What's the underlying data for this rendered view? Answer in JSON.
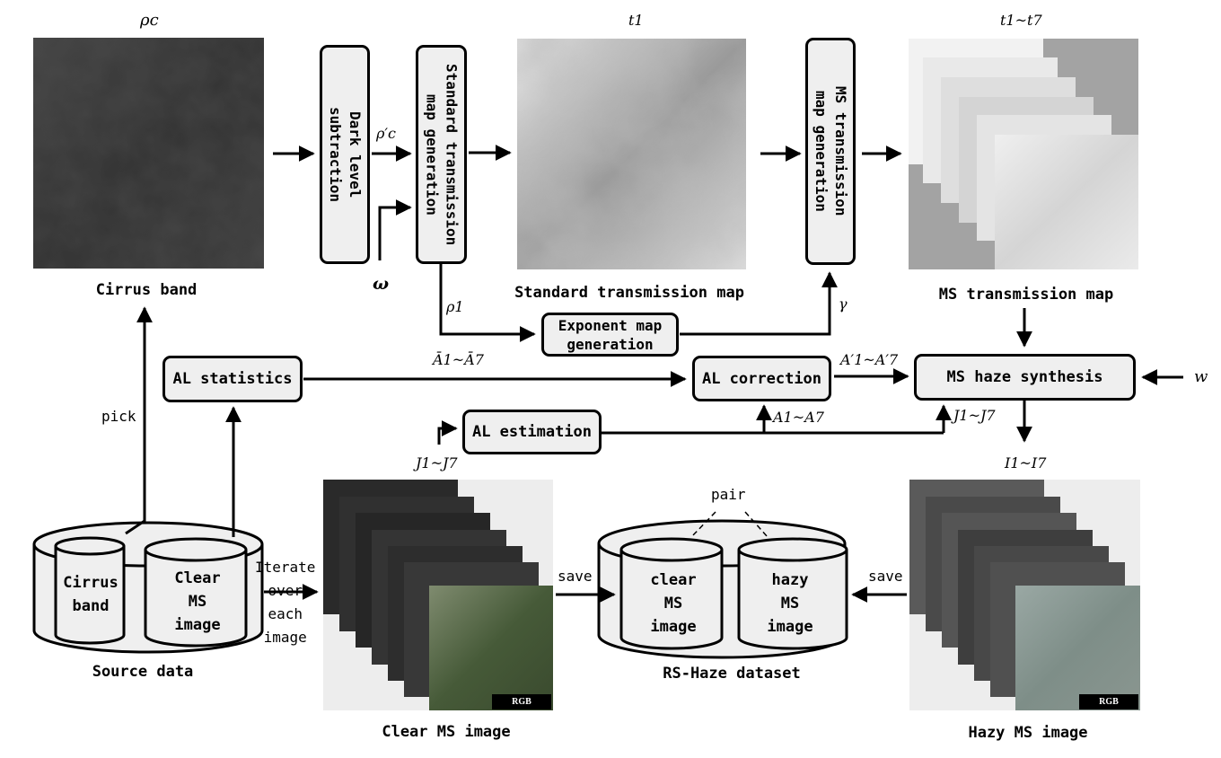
{
  "symbols": {
    "rho_c": "ρc",
    "rho_c_prime": "ρ′c",
    "omega": "ω",
    "rho_1": "ρ1",
    "t1": "t1",
    "t1_t7": "t1~t7",
    "gamma": "γ",
    "w": "w",
    "a_bar": "Ā1~Ā7",
    "a_prime": "A′1~A′7",
    "a_range": "A1~A7",
    "j_range": "J1~J7",
    "j_range_2": "J1~J7",
    "i_range": "I1~I7"
  },
  "boxes": {
    "dark_level": "Dark level\nsubtraction",
    "standard_map_gen": "Standard transmission\nmap generation",
    "ms_map_gen": "MS transmission\nmap generation",
    "exponent_map": "Exponent map\ngeneration",
    "al_statistics": "AL statistics",
    "al_correction": "AL correction",
    "ms_haze_synthesis": "MS haze synthesis",
    "al_estimation": "AL estimation"
  },
  "captions": {
    "cirrus_band": "Cirrus band",
    "standard_transmission_map": "Standard transmission map",
    "ms_transmission_map": "MS transmission map",
    "source_data": "Source data",
    "clear_ms_image": "Clear MS image",
    "rs_haze_dataset": "RS-Haze dataset",
    "hazy_ms_image": "Hazy MS image"
  },
  "edge_labels": {
    "pick": "pick",
    "iterate": "Iterate\nover\neach\nimage",
    "save_left": "save",
    "save_right": "save",
    "pair": "pair"
  },
  "cylinders": {
    "cirrus_band": "Cirrus\nband",
    "clear_ms_image": "Clear\nMS\nimage",
    "clear_ms_dataset": "clear\nMS\nimage",
    "hazy_ms_dataset": "hazy\nMS\nimage"
  },
  "badges": {
    "clear_rgb": "RGB",
    "hazy_rgb": "RGB"
  },
  "colors": {
    "box_fill": "#efefef",
    "stroke": "#000000",
    "cirrus_image": "#3b3b3b",
    "map_background": "#a3a3a3"
  }
}
